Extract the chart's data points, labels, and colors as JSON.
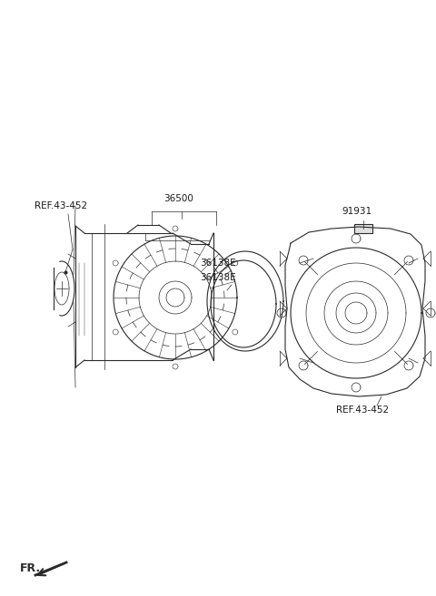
{
  "bg_color": "#ffffff",
  "line_color": "#2a2a2a",
  "label_color": "#1a1a1a",
  "labels": {
    "ref_43_452_left": "REF.43-452",
    "part_36500": "36500",
    "part_36138E_1": "36138E",
    "part_36138E_2": "36138E",
    "ref_43_452_right": "REF.43-452",
    "part_91931": "91931",
    "fr_label": "FR."
  },
  "figsize": [
    4.8,
    6.57
  ],
  "dpi": 100
}
